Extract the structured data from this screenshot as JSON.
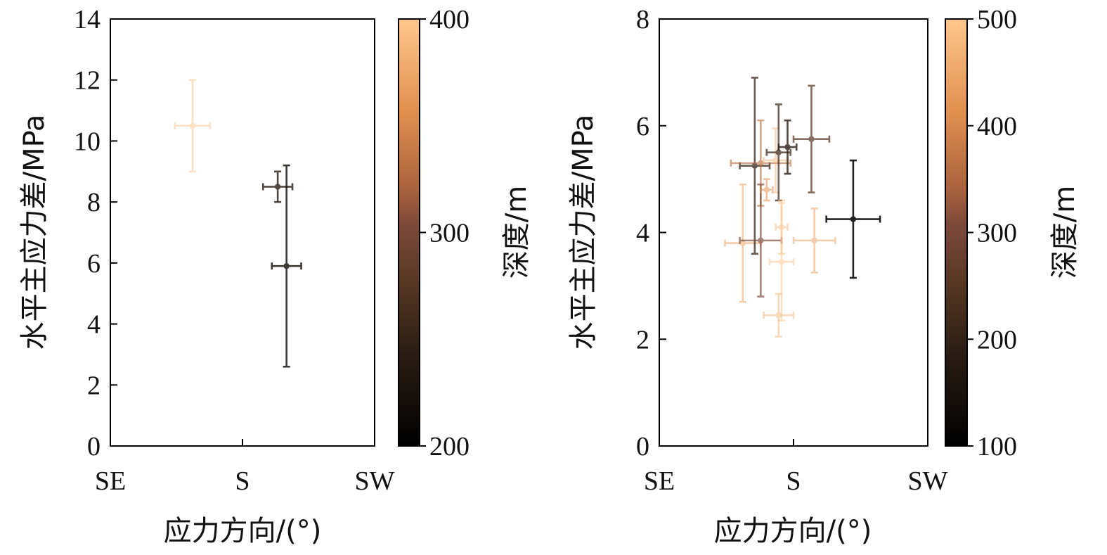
{
  "chart_data": [
    {
      "type": "scatter",
      "xlabel": "应力方向/(°)",
      "ylabel": "水平主应力差/MPa",
      "x_tick_labels": [
        "SE",
        "S",
        "SW"
      ],
      "xlim": [
        135,
        225
      ],
      "ylim": [
        0,
        14
      ],
      "y_ticks": [
        "0",
        "2",
        "4",
        "6",
        "8",
        "10",
        "12",
        "14"
      ],
      "colorbar": {
        "label": "深度/m",
        "range": [
          200,
          400
        ],
        "ticks": [
          "200",
          "300",
          "400"
        ]
      },
      "points": [
        {
          "x": 163,
          "y": 10.5,
          "x_err": 6,
          "y_err": 1.5,
          "depth": 395
        },
        {
          "x": 192,
          "y": 8.5,
          "x_err": 5,
          "y_err": 0.5,
          "depth": 240
        },
        {
          "x": 195,
          "y": 5.9,
          "x_err": 5,
          "y_err": 3.3,
          "depth": 225
        }
      ]
    },
    {
      "type": "scatter",
      "xlabel": "应力方向/(°)",
      "ylabel": "水平主应力差/MPa",
      "x_tick_labels": [
        "SE",
        "S",
        "SW"
      ],
      "xlim": [
        135,
        225
      ],
      "ylim": [
        0,
        8
      ],
      "y_ticks": [
        "0",
        "2",
        "4",
        "6",
        "8"
      ],
      "colorbar": {
        "label": "深度/m",
        "range": [
          100,
          500
        ],
        "ticks": [
          "100",
          "200",
          "300",
          "400",
          "500"
        ]
      },
      "points": [
        {
          "x": 163,
          "y": 3.8,
          "x_err": 6,
          "y_err": 1.1,
          "depth": 440
        },
        {
          "x": 167,
          "y": 5.25,
          "x_err": 5,
          "y_err": 1.65,
          "depth": 210
        },
        {
          "x": 169,
          "y": 5.3,
          "x_err": 10,
          "y_err": 0.8,
          "depth": 360
        },
        {
          "x": 169,
          "y": 3.85,
          "x_err": 7,
          "y_err": 1.05,
          "depth": 300
        },
        {
          "x": 171,
          "y": 4.8,
          "x_err": 2,
          "y_err": 0.2,
          "depth": 420
        },
        {
          "x": 174,
          "y": 5.35,
          "x_err": 4,
          "y_err": 0.6,
          "depth": 470
        },
        {
          "x": 175,
          "y": 5.5,
          "x_err": 4,
          "y_err": 0.9,
          "depth": 220
        },
        {
          "x": 176,
          "y": 4.1,
          "x_err": 2,
          "y_err": 0.5,
          "depth": 480
        },
        {
          "x": 176,
          "y": 3.45,
          "x_err": 4,
          "y_err": 1.1,
          "depth": 490
        },
        {
          "x": 175,
          "y": 2.45,
          "x_err": 5,
          "y_err": 0.4,
          "depth": 470
        },
        {
          "x": 178,
          "y": 5.6,
          "x_err": 3,
          "y_err": 0.5,
          "depth": 180
        },
        {
          "x": 186,
          "y": 5.75,
          "x_err": 6,
          "y_err": 1.0,
          "depth": 250
        },
        {
          "x": 187,
          "y": 3.85,
          "x_err": 7,
          "y_err": 0.6,
          "depth": 440
        },
        {
          "x": 200,
          "y": 4.25,
          "x_err": 9,
          "y_err": 1.1,
          "depth": 110
        }
      ]
    }
  ]
}
